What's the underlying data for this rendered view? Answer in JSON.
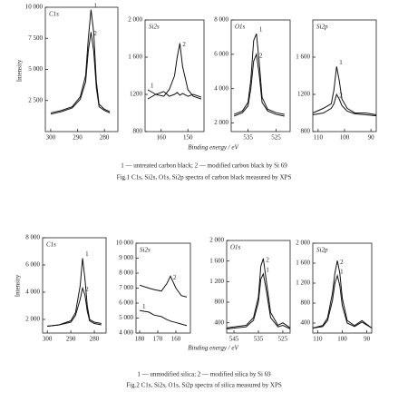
{
  "chart_data": [
    {
      "type": "line",
      "title": "C1s",
      "xlim": [
        302,
        275
      ],
      "ylim": [
        0,
        10000
      ],
      "xticks": [
        300,
        290,
        280
      ],
      "yticks": [
        {
          "value": 2500,
          "label": "2 500"
        },
        {
          "value": 5000,
          "label": "5 000"
        },
        {
          "value": 7500,
          "label": "7 500"
        },
        {
          "value": 10000,
          "label": "10 000"
        }
      ],
      "x": [
        300,
        296,
        292,
        289,
        287,
        286,
        285,
        284,
        283,
        282,
        280,
        278
      ],
      "series": [
        {
          "name": "1",
          "color": "#111",
          "values": [
            1500,
            1700,
            2000,
            2800,
            4500,
            7500,
            9800,
            8000,
            4000,
            2200,
            1800,
            1600
          ]
        },
        {
          "name": "2",
          "color": "#111",
          "values": [
            1400,
            1600,
            1900,
            2600,
            4000,
            6500,
            8000,
            6500,
            3500,
            2000,
            1700,
            1500
          ]
        }
      ]
    },
    {
      "type": "line",
      "title": "Si2s",
      "xlim": [
        166,
        144
      ],
      "ylim": [
        800,
        2000
      ],
      "xticks": [
        160,
        150
      ],
      "yticks": [
        800,
        1200,
        {
          "value": 1600,
          "label": "1 600"
        },
        {
          "value": 2000,
          "label": "2 000"
        }
      ],
      "x": [
        165,
        162,
        159,
        157,
        155,
        154,
        153,
        152,
        150,
        148,
        145
      ],
      "series": [
        {
          "name": "1",
          "color": "#111",
          "values": [
            1250,
            1200,
            1230,
            1180,
            1200,
            1220,
            1190,
            1210,
            1180,
            1200,
            1170
          ]
        },
        {
          "name": "2",
          "color": "#111",
          "values": [
            1150,
            1200,
            1180,
            1250,
            1400,
            1600,
            1750,
            1500,
            1250,
            1180,
            1150
          ]
        }
      ]
    },
    {
      "type": "line",
      "title": "O1s",
      "xlim": [
        541,
        520
      ],
      "ylim": [
        1500,
        8000
      ],
      "xticks": [
        535,
        525
      ],
      "yticks": [
        {
          "value": 2000,
          "label": "2 000"
        },
        {
          "value": 4000,
          "label": "4 000"
        },
        {
          "value": 6000,
          "label": "6 000"
        },
        {
          "value": 8000,
          "label": "8 000"
        }
      ],
      "x": [
        540,
        537,
        535,
        534,
        533,
        532,
        531,
        530,
        528,
        525,
        522
      ],
      "series": [
        {
          "name": "1",
          "color": "#111",
          "values": [
            2500,
            2700,
            3200,
            4500,
            6800,
            7200,
            5500,
            3500,
            2800,
            2600,
            2500
          ]
        },
        {
          "name": "2",
          "color": "#111",
          "values": [
            2400,
            2600,
            3000,
            4000,
            5600,
            6000,
            4800,
            3200,
            2700,
            2500,
            2400
          ]
        }
      ]
    },
    {
      "type": "line",
      "title": "Si2p",
      "xlim": [
        112,
        88
      ],
      "ylim": [
        800,
        2000
      ],
      "xticks": [
        110,
        100,
        90
      ],
      "yticks": [
        800,
        1200,
        {
          "value": 1600,
          "label": "1 600"
        }
      ],
      "x": [
        112,
        108,
        105,
        104,
        103,
        102,
        101,
        99,
        96,
        92,
        88
      ],
      "series": [
        {
          "name": "1",
          "color": "#111",
          "values": [
            1000,
            1050,
            1100,
            1250,
            1500,
            1350,
            1150,
            1050,
            1000,
            1000,
            980
          ]
        },
        {
          "name": "2",
          "color": "#111",
          "values": [
            980,
            1000,
            1050,
            1100,
            1200,
            1150,
            1080,
            1020,
            990,
            980,
            970
          ]
        }
      ]
    },
    {
      "type": "line",
      "title": "C1s",
      "xlim": [
        302,
        275
      ],
      "ylim": [
        1000,
        8000
      ],
      "xticks": [
        300,
        290,
        280
      ],
      "yticks": [
        {
          "value": 2000,
          "label": "2 000"
        },
        {
          "value": 4000,
          "label": "4 000"
        },
        {
          "value": 6000,
          "label": "6 000"
        },
        {
          "value": 8000,
          "label": "8 000"
        }
      ],
      "x": [
        300,
        295,
        290,
        288,
        286,
        285,
        284,
        283,
        282,
        280,
        277
      ],
      "series": [
        {
          "name": "1",
          "color": "#111",
          "values": [
            1500,
            1600,
            1900,
            2500,
            4500,
            6500,
            5000,
            3000,
            2000,
            1800,
            1700
          ]
        },
        {
          "name": "2",
          "color": "#111",
          "values": [
            1500,
            1600,
            1800,
            2300,
            3500,
            4300,
            3800,
            2600,
            1900,
            1700,
            1600
          ]
        }
      ]
    },
    {
      "type": "line",
      "title": "Si2s",
      "xlim": [
        182,
        152
      ],
      "ylim": [
        4000,
        10000
      ],
      "xticks": [
        180,
        170,
        160
      ],
      "yticks": [
        {
          "value": 4000,
          "label": "4 000"
        },
        {
          "value": 5000,
          "label": "5 000"
        },
        {
          "value": 6000,
          "label": "6 000"
        },
        {
          "value": 7000,
          "label": "7 000"
        },
        {
          "value": 8000,
          "label": "8 000"
        },
        {
          "value": 9000,
          "label": "9 000"
        },
        {
          "value": 10000,
          "label": "10 000"
        }
      ],
      "x": [
        180,
        175,
        172,
        168,
        165,
        163,
        160,
        157,
        154
      ],
      "series": [
        {
          "name": "1",
          "color": "#111",
          "values": [
            5500,
            5400,
            5200,
            5100,
            4900,
            4800,
            4700,
            4600,
            4500
          ]
        },
        {
          "name": "2",
          "color": "#111",
          "values": [
            7200,
            7000,
            6900,
            6800,
            7300,
            7800,
            7000,
            6500,
            6400
          ]
        }
      ]
    },
    {
      "type": "line",
      "title": "O1s",
      "xlim": [
        548,
        522
      ],
      "ylim": [
        200,
        2000
      ],
      "xticks": [
        545,
        535,
        525
      ],
      "yticks": [
        400,
        800,
        {
          "value": 1200,
          "label": "1 200"
        },
        {
          "value": 1600,
          "label": "1 600"
        },
        {
          "value": 2000,
          "label": "2 000"
        }
      ],
      "x": [
        548,
        540,
        537,
        535,
        534,
        533,
        532,
        530,
        527,
        525,
        522
      ],
      "series": [
        {
          "name": "1",
          "color": "#111",
          "values": [
            280,
            320,
            450,
            800,
            1250,
            1350,
            1100,
            500,
            320,
            350,
            280
          ]
        },
        {
          "name": "2",
          "color": "#111",
          "values": [
            300,
            350,
            500,
            900,
            1500,
            1650,
            1300,
            600,
            350,
            400,
            300
          ]
        }
      ]
    },
    {
      "type": "line",
      "title": "Si2p",
      "xlim": [
        112,
        88
      ],
      "ylim": [
        200,
        2000
      ],
      "xticks": [
        110,
        100,
        90
      ],
      "yticks": [
        400,
        800,
        {
          "value": 1200,
          "label": "1 200"
        },
        {
          "value": 1600,
          "label": "1 600"
        },
        {
          "value": 2000,
          "label": "2 000"
        }
      ],
      "x": [
        112,
        108,
        106,
        104,
        103,
        102,
        101,
        100,
        98,
        95,
        92,
        88
      ],
      "series": [
        {
          "name": "1",
          "color": "#111",
          "values": [
            300,
            330,
            450,
            850,
            1200,
            1350,
            1150,
            750,
            400,
            330,
            420,
            300
          ]
        },
        {
          "name": "2",
          "color": "#111",
          "values": [
            300,
            350,
            500,
            1000,
            1400,
            1650,
            1400,
            900,
            450,
            350,
            450,
            300
          ]
        }
      ]
    }
  ],
  "figure_texts": [
    {
      "ylabel": "Intensity",
      "xlabel": "Binding energy / eV",
      "note": "1 — untreated carbon black; 2 — modified carbon black by Si 69",
      "caption": "Fig.1   C1s, Si2s, O1s, Si2p spectra of carbon black measured by XPS"
    },
    {
      "ylabel": "Intensity",
      "xlabel": "Binding energy / eV",
      "note": "1 — unmodified silica; 2 — modified silica by Si 69",
      "caption": "Fig.2   C1s, Si2s, O1s, Si2p spectra of silica measured by XPS"
    }
  ]
}
